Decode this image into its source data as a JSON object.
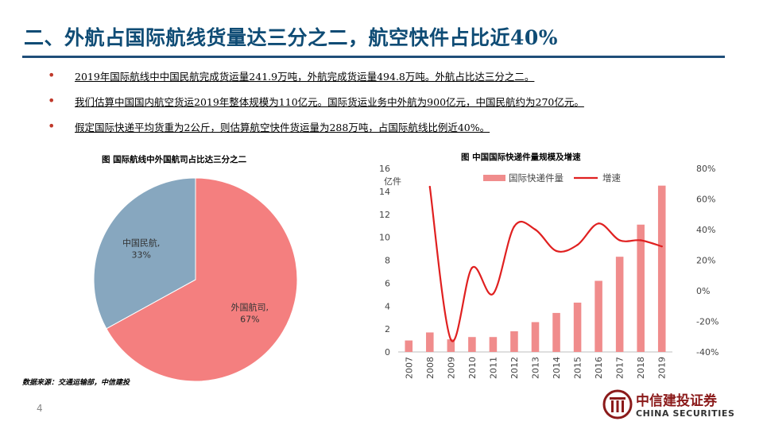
{
  "title": "二、外航占国际航线货量达三分之二，航空快件占比近40%",
  "bullets": [
    "2019年国际航线中中国民航完成货运量241.9万吨，外航完成货运量494.8万吨。外航占比达三分之二。",
    "我们估算中国国内航空货运2019年整体规模为110亿元。国际货运业务中外航为900亿元，中国民航约为270亿元。",
    "假定国际快递平均货重为2公斤，则估算航空快件货运量为288万吨，占国际航线比例近40%。"
  ],
  "bullet_marker": "•",
  "pie_title": "图  国际航线中外国航司占比达三分之二",
  "bar_title": "图  中国国际快递件量规模及增速",
  "source": "数据来源：交通运输部，中信建投",
  "page_number": "4",
  "logo": {
    "name": "中信建投证券",
    "english": "CHINA SECURITIES"
  },
  "colors": {
    "accent_red": "#c0392b",
    "title_blue": "#0f4c75",
    "pie_foreign": "#f47f7f",
    "pie_domestic": "#87a7bf",
    "bar": "#f08c8c",
    "line": "#e02020"
  },
  "chart_data": [
    {
      "type": "pie",
      "slices": [
        {
          "label": "外国航司,",
          "pct_label": "67%",
          "value": 67
        },
        {
          "label": "中国民航,",
          "pct_label": "33%",
          "value": 33
        }
      ]
    },
    {
      "type": "bar",
      "categories": [
        "2007",
        "2008",
        "2009",
        "2010",
        "2011",
        "2012",
        "2013",
        "2014",
        "2015",
        "2016",
        "2017",
        "2018",
        "2019"
      ],
      "unit_label": "亿件",
      "series": [
        {
          "name": "国际快递件量",
          "type": "bar",
          "axis": "left",
          "values": [
            1.0,
            1.7,
            1.1,
            1.3,
            1.3,
            1.8,
            2.6,
            3.4,
            4.3,
            6.2,
            8.3,
            11.1,
            14.5
          ]
        },
        {
          "name": "增速",
          "type": "line",
          "axis": "right",
          "values": [
            null,
            68,
            -32,
            15,
            -2,
            42,
            40,
            26,
            30,
            44,
            33,
            33,
            29
          ]
        }
      ],
      "ylim_left": [
        0,
        16
      ],
      "yticks_left": [
        "0",
        "2",
        "4",
        "6",
        "8",
        "10",
        "12",
        "14",
        "16"
      ],
      "ylim_right": [
        -40,
        80
      ],
      "yticks_right": [
        "-40%",
        "-20%",
        "0%",
        "20%",
        "40%",
        "60%",
        "80%"
      ],
      "legend_position": "top"
    }
  ]
}
